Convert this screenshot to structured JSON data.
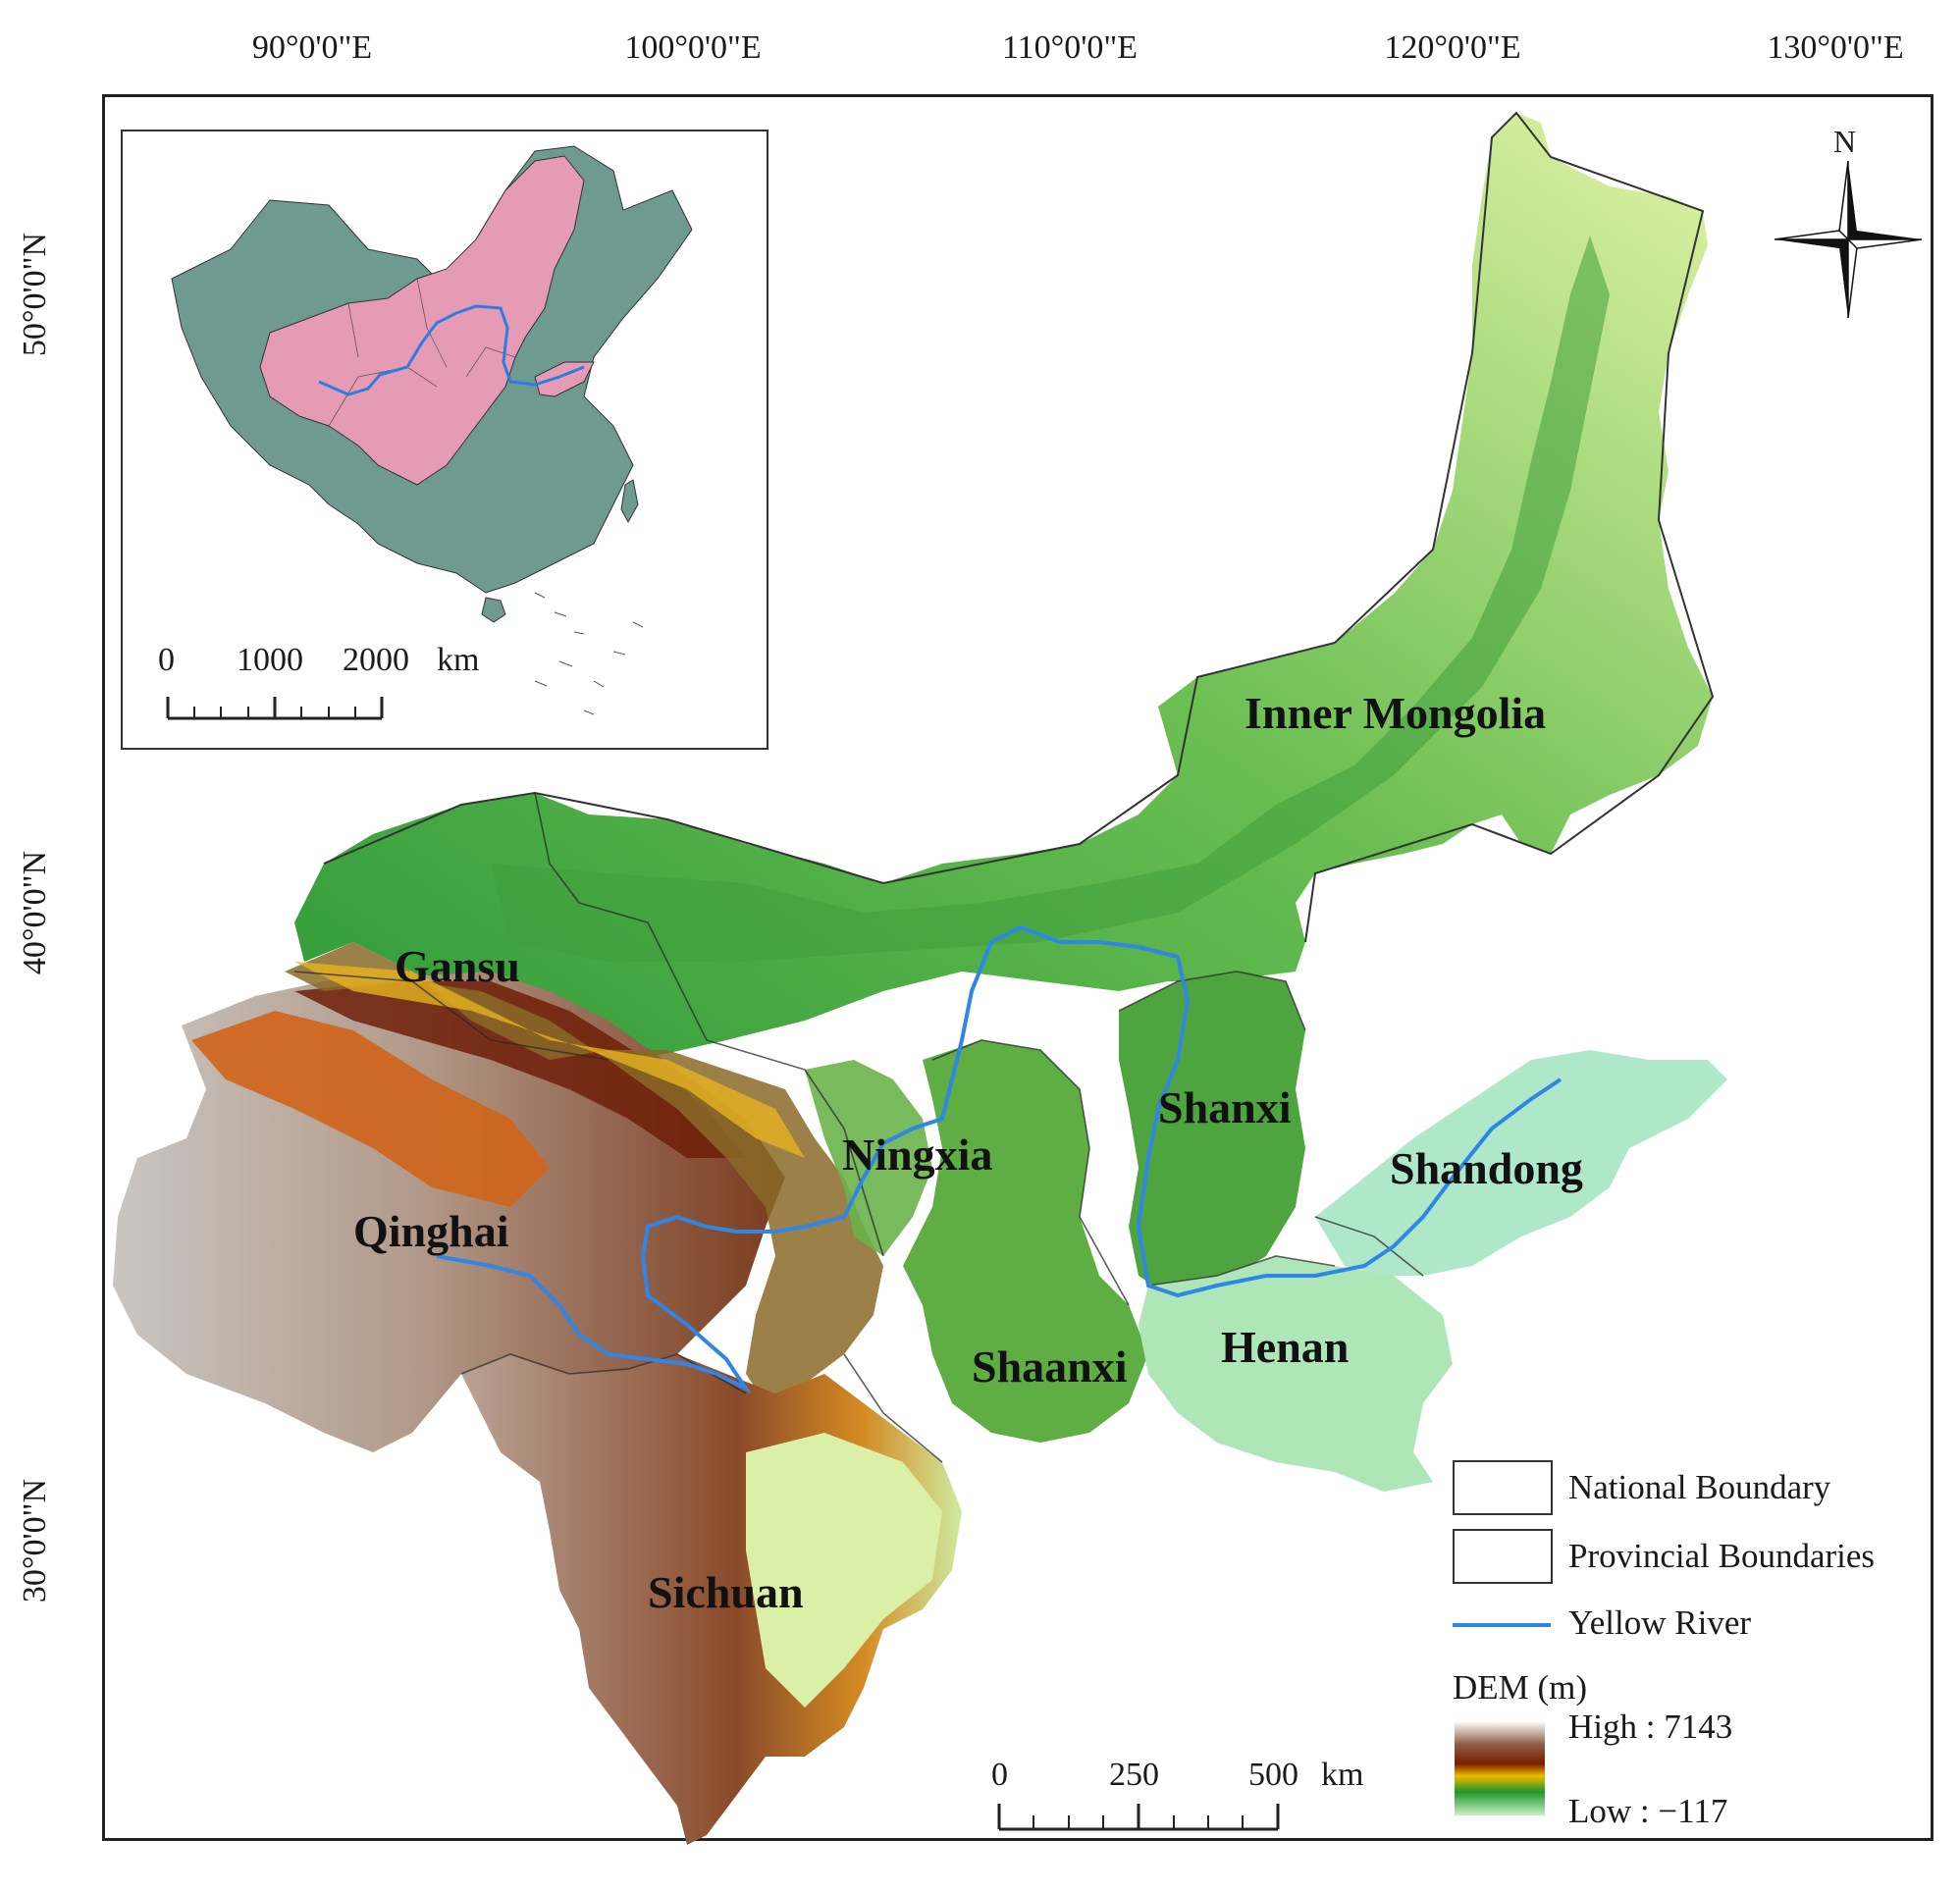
{
  "graticule": {
    "longitude_labels": [
      "90°0'0\"E",
      "100°0'0\"E",
      "110°0'0\"E",
      "120°0'0\"E",
      "130°0'0\"E"
    ],
    "latitude_labels": [
      "50°0'0\"N",
      "40°0'0\"N",
      "30°0'0\"N"
    ]
  },
  "provinces": [
    {
      "id": "inner-mongolia",
      "label": "Inner Mongolia"
    },
    {
      "id": "gansu",
      "label": "Gansu"
    },
    {
      "id": "ningxia",
      "label": "Ningxia"
    },
    {
      "id": "shanxi",
      "label": "Shanxi"
    },
    {
      "id": "shandong",
      "label": "Shandong"
    },
    {
      "id": "qinghai",
      "label": "Qinghai"
    },
    {
      "id": "shaanxi",
      "label": "Shaanxi"
    },
    {
      "id": "henan",
      "label": "Henan"
    },
    {
      "id": "sichuan",
      "label": "Sichuan"
    }
  ],
  "north_arrow": {
    "label": "N"
  },
  "inset": {
    "scale_labels": [
      "0",
      "1000",
      "2000",
      "km"
    ],
    "colors": {
      "china": "#6e9a90",
      "study_area": "#e59bb4",
      "river": "#2f7ce0"
    }
  },
  "main_scale": {
    "labels": [
      "0",
      "250",
      "500",
      "km"
    ]
  },
  "legend": {
    "national_boundary": "National Boundary",
    "provincial_boundaries": "Provincial Boundaries",
    "yellow_river": "Yellow River",
    "dem_title": "DEM (m)",
    "dem_high": "High : 7143",
    "dem_low": "Low : −117",
    "river_color": "#2f86e6"
  }
}
